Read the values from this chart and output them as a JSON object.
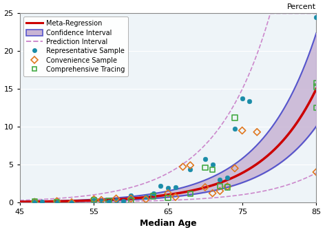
{
  "title": "",
  "xlabel": "Median Age",
  "ylabel_right": "Percent",
  "xlim": [
    45,
    85
  ],
  "ylim": [
    0,
    25
  ],
  "xticks": [
    45,
    55,
    65,
    75,
    85
  ],
  "yticks": [
    0,
    5,
    10,
    15,
    20,
    25
  ],
  "regression_color": "#cc0000",
  "ci_fill_color": "#c8b4d4",
  "ci_edge_color": "#5555cc",
  "pi_color": "#cc88cc",
  "rep_color": "#1a8ca8",
  "conv_color": "#e07820",
  "comp_color": "#44aa44",
  "background_color": "#eef4f8",
  "reg_a": -8.8,
  "reg_b": 0.1354,
  "ci_da": 0.4,
  "pi_da": 1.35,
  "representative_samples": [
    [
      47,
      0.05
    ],
    [
      48,
      0.1
    ],
    [
      50,
      0.0
    ],
    [
      52,
      0.1
    ],
    [
      55,
      0.3
    ],
    [
      56,
      0.2
    ],
    [
      57,
      0.1
    ],
    [
      58,
      0.3
    ],
    [
      59,
      0.15
    ],
    [
      60,
      0.9
    ],
    [
      62,
      0.7
    ],
    [
      63,
      1.2
    ],
    [
      64,
      2.2
    ],
    [
      65,
      1.9
    ],
    [
      66,
      2.0
    ],
    [
      68,
      4.4
    ],
    [
      70,
      5.7
    ],
    [
      71,
      5.0
    ],
    [
      72,
      3.0
    ],
    [
      73,
      3.3
    ],
    [
      74,
      9.7
    ],
    [
      75,
      13.7
    ],
    [
      76,
      13.4
    ],
    [
      85,
      24.5
    ]
  ],
  "convenience_samples": [
    [
      47,
      0.05
    ],
    [
      50,
      0.15
    ],
    [
      52,
      0.0
    ],
    [
      55,
      0.4
    ],
    [
      56,
      0.3
    ],
    [
      58,
      0.5
    ],
    [
      60,
      0.5
    ],
    [
      62,
      0.4
    ],
    [
      65,
      1.2
    ],
    [
      66,
      0.7
    ],
    [
      67,
      4.7
    ],
    [
      68,
      4.9
    ],
    [
      70,
      2.0
    ],
    [
      71,
      1.2
    ],
    [
      72,
      1.5
    ],
    [
      73,
      2.1
    ],
    [
      74,
      4.5
    ],
    [
      75,
      9.5
    ],
    [
      77,
      9.3
    ],
    [
      85,
      4.0
    ]
  ],
  "comprehensive_samples": [
    [
      47,
      0.1
    ],
    [
      50,
      0.05
    ],
    [
      55,
      0.3
    ],
    [
      57,
      0.2
    ],
    [
      60,
      0.2
    ],
    [
      63,
      0.8
    ],
    [
      65,
      0.6
    ],
    [
      68,
      1.1
    ],
    [
      70,
      4.6
    ],
    [
      71,
      4.3
    ],
    [
      72,
      2.1
    ],
    [
      73,
      2.0
    ],
    [
      74,
      11.2
    ],
    [
      85,
      15.8
    ],
    [
      85,
      15.3
    ],
    [
      85,
      12.5
    ]
  ]
}
